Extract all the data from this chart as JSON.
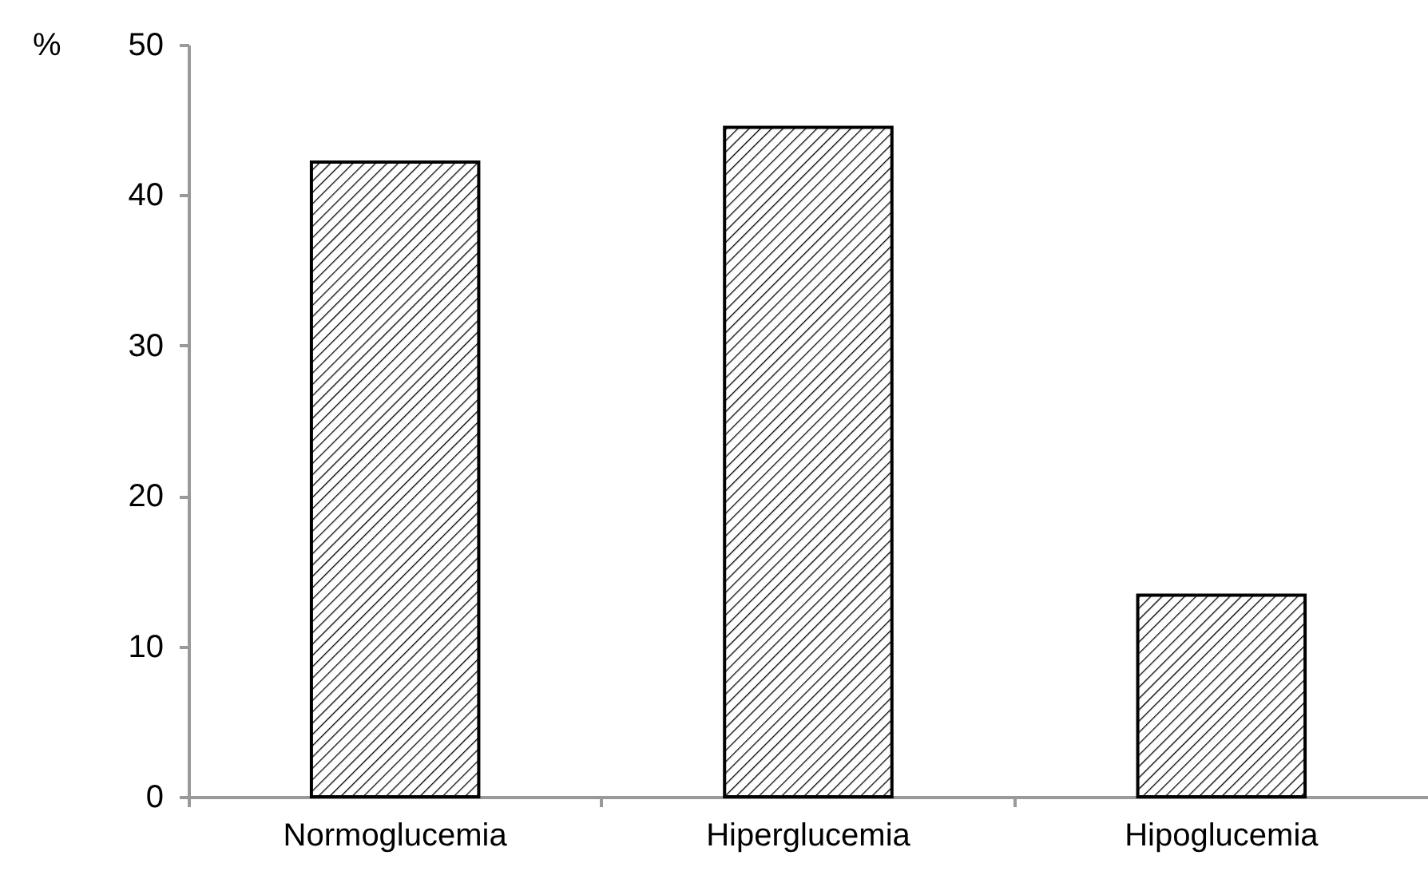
{
  "chart_data": {
    "type": "bar",
    "ylabel": "%",
    "categories": [
      "Normoglucemia",
      "Hiperglucemia",
      "Hipoglucemia"
    ],
    "values": [
      42.2,
      44.5,
      13.4
    ],
    "color": "#000000",
    "ylim": [
      0,
      50
    ],
    "yticks": [
      0,
      10,
      20,
      30,
      40,
      50
    ],
    "grid": false
  }
}
